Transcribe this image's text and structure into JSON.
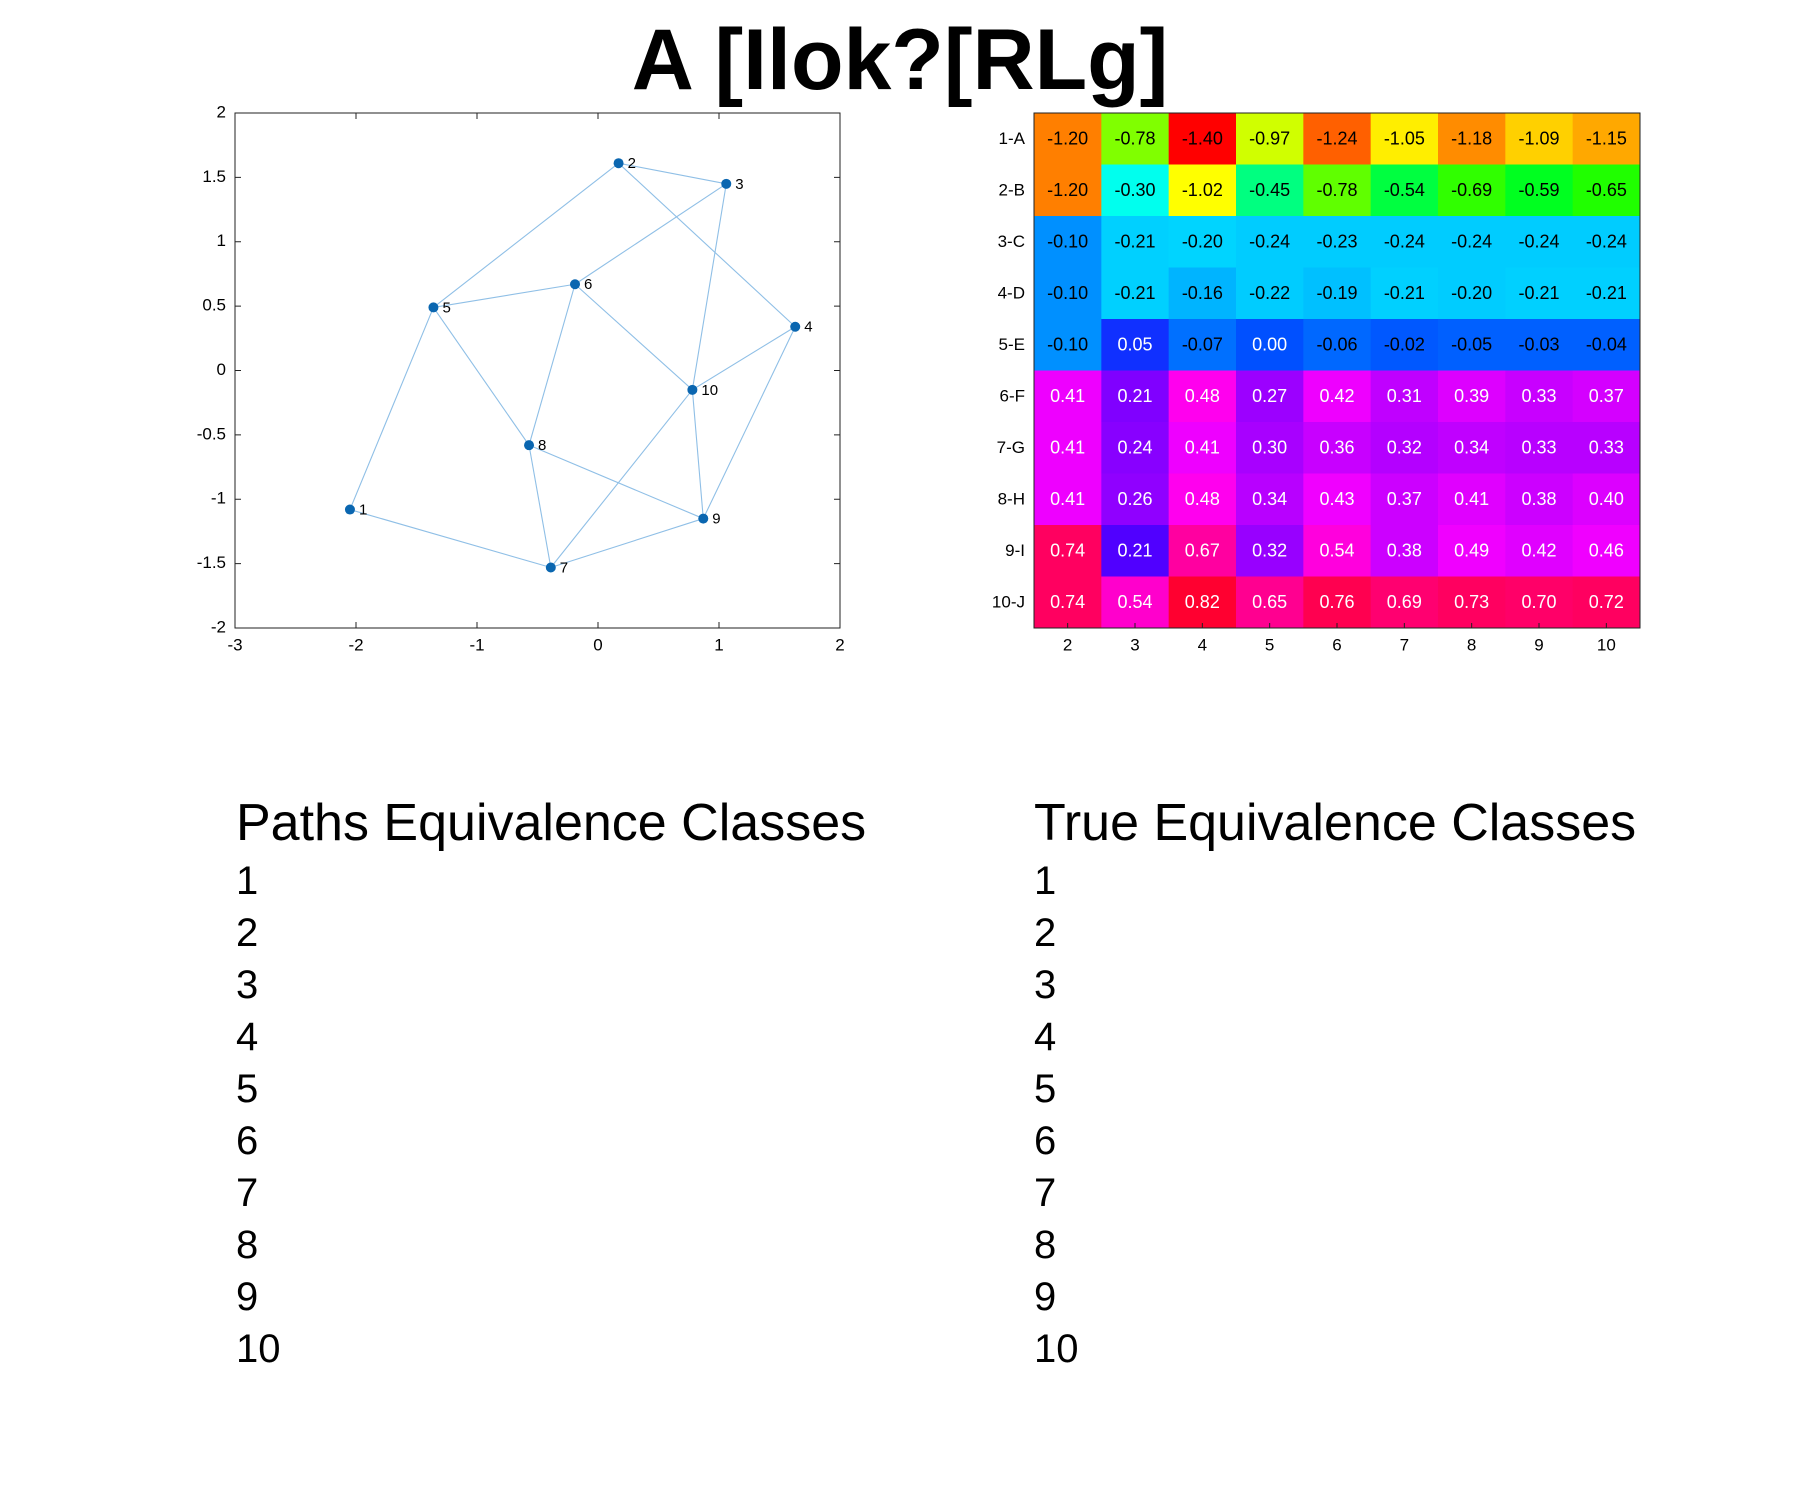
{
  "page_title": "A [Ilok?[RLg]",
  "chart_data": [
    {
      "type": "scatter",
      "title": "",
      "xlabel": "",
      "ylabel": "",
      "xlim": [
        -3,
        2
      ],
      "ylim": [
        -2,
        2
      ],
      "xticks": [
        "-3",
        "-2",
        "-1",
        "0",
        "1",
        "2"
      ],
      "yticks": [
        "2",
        "1.5",
        "1",
        "0.5",
        "0",
        "-0.5",
        "-1",
        "-1.5",
        "-2"
      ],
      "nodes": [
        {
          "label": "1",
          "x": -2.05,
          "y": -1.08
        },
        {
          "label": "2",
          "x": 0.17,
          "y": 1.61
        },
        {
          "label": "3",
          "x": 1.06,
          "y": 1.45
        },
        {
          "label": "4",
          "x": 1.63,
          "y": 0.34
        },
        {
          "label": "5",
          "x": -1.36,
          "y": 0.49
        },
        {
          "label": "6",
          "x": -0.19,
          "y": 0.67
        },
        {
          "label": "7",
          "x": -0.39,
          "y": -1.53
        },
        {
          "label": "8",
          "x": -0.57,
          "y": -0.58
        },
        {
          "label": "9",
          "x": 0.87,
          "y": -1.15
        },
        {
          "label": "10",
          "x": 0.78,
          "y": -0.15
        }
      ],
      "edges": [
        [
          1,
          5
        ],
        [
          1,
          7
        ],
        [
          2,
          3
        ],
        [
          2,
          5
        ],
        [
          2,
          4
        ],
        [
          3,
          6
        ],
        [
          3,
          10
        ],
        [
          4,
          10
        ],
        [
          4,
          9
        ],
        [
          5,
          6
        ],
        [
          5,
          8
        ],
        [
          6,
          8
        ],
        [
          6,
          10
        ],
        [
          8,
          7
        ],
        [
          8,
          9
        ],
        [
          7,
          10
        ],
        [
          7,
          9
        ],
        [
          10,
          9
        ]
      ],
      "colors": {
        "node": "#0a66b0",
        "edge": "#8fbfe6"
      }
    },
    {
      "type": "heatmap",
      "title": "",
      "row_labels": [
        "1-A",
        "2-B",
        "3-C",
        "4-D",
        "5-E",
        "6-F",
        "7-G",
        "8-H",
        "9-I",
        "10-J"
      ],
      "col_labels": [
        "2",
        "3",
        "4",
        "5",
        "6",
        "7",
        "8",
        "9",
        "10"
      ],
      "values": [
        [
          "-1.20",
          "-0.78",
          "-1.40",
          "-0.97",
          "-1.24",
          "-1.05",
          "-1.18",
          "-1.09",
          "-1.15"
        ],
        [
          "-1.20",
          "-0.30",
          "-1.02",
          "-0.45",
          "-0.78",
          "-0.54",
          "-0.69",
          "-0.59",
          "-0.65"
        ],
        [
          "-0.10",
          "-0.21",
          "-0.20",
          "-0.24",
          "-0.23",
          "-0.24",
          "-0.24",
          "-0.24",
          "-0.24"
        ],
        [
          "-0.10",
          "-0.21",
          "-0.16",
          "-0.22",
          "-0.19",
          "-0.21",
          "-0.20",
          "-0.21",
          "-0.21"
        ],
        [
          "-0.10",
          "0.05",
          "-0.07",
          "0.00",
          "-0.06",
          "-0.02",
          "-0.05",
          "-0.03",
          "-0.04"
        ],
        [
          "0.41",
          "0.21",
          "0.48",
          "0.27",
          "0.42",
          "0.31",
          "0.39",
          "0.33",
          "0.37"
        ],
        [
          "0.41",
          "0.24",
          "0.41",
          "0.30",
          "0.36",
          "0.32",
          "0.34",
          "0.33",
          "0.33"
        ],
        [
          "0.41",
          "0.26",
          "0.48",
          "0.34",
          "0.43",
          "0.37",
          "0.41",
          "0.38",
          "0.40"
        ],
        [
          "0.74",
          "0.21",
          "0.67",
          "0.32",
          "0.54",
          "0.38",
          "0.49",
          "0.42",
          "0.46"
        ],
        [
          "0.74",
          "0.54",
          "0.82",
          "0.65",
          "0.76",
          "0.69",
          "0.73",
          "0.70",
          "0.72"
        ]
      ],
      "colors": [
        [
          "#ff7f00",
          "#80ff00",
          "#ff0000",
          "#d0ff00",
          "#ff6000",
          "#ffee00",
          "#ff8c00",
          "#ffd000",
          "#ffa800"
        ],
        [
          "#ff7f00",
          "#00ffee",
          "#ffff00",
          "#00ff80",
          "#60ff00",
          "#00ff40",
          "#30ff00",
          "#00ff20",
          "#20ff00"
        ],
        [
          "#0090ff",
          "#00d0ff",
          "#00d4ff",
          "#00ccff",
          "#00ccff",
          "#00ccff",
          "#00ccff",
          "#00ccff",
          "#00ccff"
        ],
        [
          "#0090ff",
          "#00d0ff",
          "#00b4ff",
          "#00ccff",
          "#00c0ff",
          "#00d0ff",
          "#00ccff",
          "#00d0ff",
          "#00d0ff"
        ],
        [
          "#0090ff",
          "#1030ff",
          "#0070ff",
          "#0050ff",
          "#0068ff",
          "#0058ff",
          "#0060ff",
          "#0060ff",
          "#0060ff"
        ],
        [
          "#ee00ff",
          "#8000ff",
          "#ff00ee",
          "#9c00ff",
          "#ee00ff",
          "#c000ff",
          "#dd00ff",
          "#c800ff",
          "#d400ff"
        ],
        [
          "#ee00ff",
          "#8800ff",
          "#ee00ff",
          "#a800ff",
          "#c800ff",
          "#b400ff",
          "#c000ff",
          "#b800ff",
          "#b800ff"
        ],
        [
          "#ee00ff",
          "#9000ff",
          "#ff00ee",
          "#b800ff",
          "#f000ff",
          "#cc00ff",
          "#e000ff",
          "#cc00ff",
          "#dc00ff"
        ],
        [
          "#ff0060",
          "#5000ff",
          "#ff00a0",
          "#9800ff",
          "#ff00dd",
          "#cc00ff",
          "#f000ff",
          "#e000ff",
          "#f000ff"
        ],
        [
          "#ff0060",
          "#ff00cc",
          "#ff0030",
          "#ff0090",
          "#ff0050",
          "#ff0070",
          "#ff0060",
          "#ff0068",
          "#ff0060"
        ]
      ]
    }
  ],
  "paths_classes": {
    "heading": "Paths Equivalence Classes",
    "items": [
      "1",
      "2",
      "3",
      "4",
      "5",
      "6",
      "7",
      "8",
      "9",
      "10"
    ]
  },
  "true_classes": {
    "heading": "True Equivalence Classes",
    "items": [
      "1",
      "2",
      "3",
      "4",
      "5",
      "6",
      "7",
      "8",
      "9",
      "10"
    ]
  }
}
